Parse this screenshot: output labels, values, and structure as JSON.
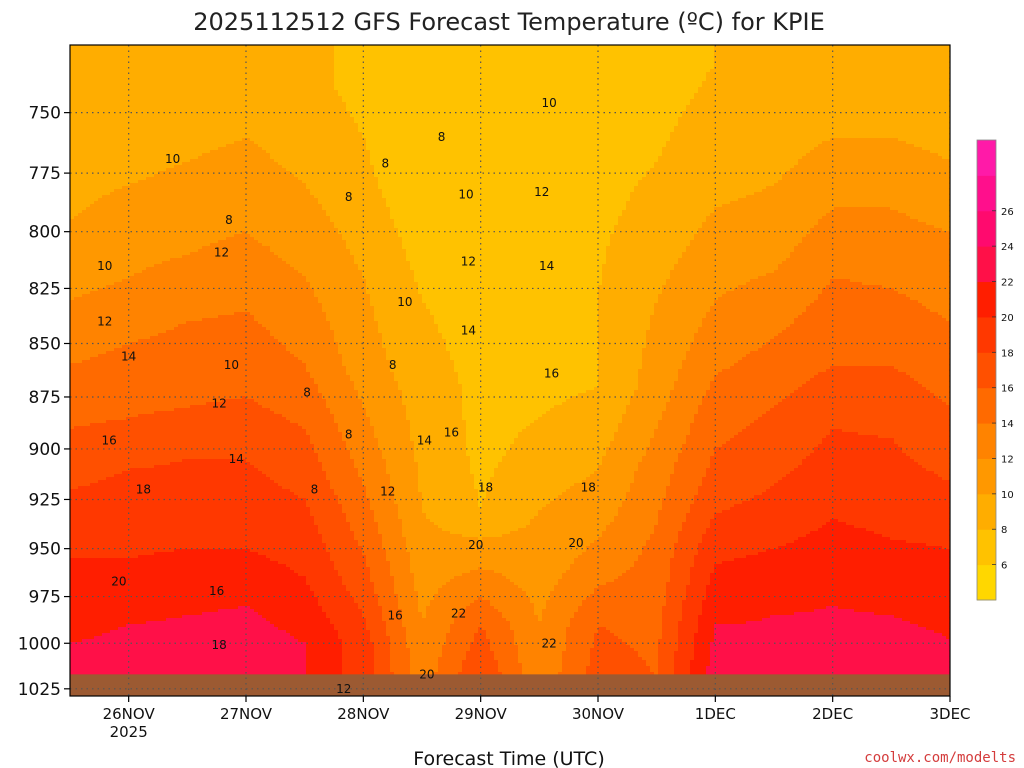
{
  "title": "2025112512 GFS Forecast Temperature (ºC) for KPIE",
  "xlabel": "Forecast Time (UTC)",
  "credit": "coolwx.com/modelts",
  "colors": {
    "bands": [
      "#ffd700",
      "#ffc200",
      "#ffad00",
      "#ff9800",
      "#ff8300",
      "#ff6a00",
      "#ff5000",
      "#ff3800",
      "#ff1e00",
      "#ff1048",
      "#ff0a6e",
      "#ff0f8c",
      "#ff1aa8"
    ],
    "ground": "#9c5a32",
    "grid": "#555555"
  },
  "chart_data": {
    "type": "heatmap",
    "title": "2025112512 GFS Forecast Temperature (ºC) for KPIE",
    "xlabel": "Forecast Time (UTC)",
    "ylabel": "",
    "x_ticks": [
      {
        "label": "26NOV",
        "sub": "2025"
      },
      {
        "label": "27NOV",
        "sub": ""
      },
      {
        "label": "28NOV",
        "sub": ""
      },
      {
        "label": "29NOV",
        "sub": ""
      },
      {
        "label": "30NOV",
        "sub": ""
      },
      {
        "label": "1DEC",
        "sub": ""
      },
      {
        "label": "2DEC",
        "sub": ""
      },
      {
        "label": "3DEC",
        "sub": ""
      }
    ],
    "x_tick_hours": [
      12,
      36,
      60,
      84,
      108,
      132,
      156,
      180
    ],
    "xlim_hours": [
      0,
      180
    ],
    "y_ticks": [
      750,
      775,
      800,
      825,
      850,
      875,
      900,
      925,
      950,
      975,
      1000,
      1025
    ],
    "ylim": [
      723,
      1029
    ],
    "y_log_scale": true,
    "grid": true,
    "colorbar_ticks": [
      6,
      8,
      10,
      12,
      14,
      16,
      18,
      20,
      22,
      24,
      26
    ],
    "colorbar_range": [
      4,
      30
    ],
    "contour_interval": 2,
    "ground_level_hpa": 1017,
    "column_hours": [
      0,
      12,
      24,
      36,
      48,
      60,
      72,
      84,
      96,
      108,
      120,
      132,
      144,
      156,
      168,
      180
    ],
    "column_profiles": [
      [
        [
          740,
          8
        ],
        [
          780,
          9.5
        ],
        [
          810,
          10.5
        ],
        [
          830,
          12
        ],
        [
          860,
          14
        ],
        [
          890,
          16
        ],
        [
          920,
          18
        ],
        [
          955,
          20
        ],
        [
          1000,
          22
        ],
        [
          1020,
          23
        ]
      ],
      [
        [
          740,
          8
        ],
        [
          770,
          9.5
        ],
        [
          790,
          10.5
        ],
        [
          820,
          12
        ],
        [
          850,
          14
        ],
        [
          885,
          16
        ],
        [
          910,
          18
        ],
        [
          955,
          20
        ],
        [
          990,
          22
        ],
        [
          1020,
          23
        ]
      ],
      [
        [
          740,
          8.5
        ],
        [
          760,
          9.5
        ],
        [
          780,
          10.5
        ],
        [
          810,
          12
        ],
        [
          840,
          14
        ],
        [
          880,
          16
        ],
        [
          905,
          18
        ],
        [
          950,
          20
        ],
        [
          985,
          22
        ],
        [
          1020,
          23.5
        ]
      ],
      [
        [
          730,
          9
        ],
        [
          760,
          10
        ],
        [
          770,
          10.5
        ],
        [
          800,
          12
        ],
        [
          835,
          14
        ],
        [
          875,
          16
        ],
        [
          905,
          18
        ],
        [
          950,
          20
        ],
        [
          980,
          22
        ],
        [
          1020,
          24
        ]
      ],
      [
        [
          740,
          8.5
        ],
        [
          770,
          9.5
        ],
        [
          790,
          10.5
        ],
        [
          820,
          12
        ],
        [
          860,
          14
        ],
        [
          890,
          16
        ],
        [
          925,
          18
        ],
        [
          965,
          20
        ],
        [
          1000,
          22
        ],
        [
          1020,
          22
        ]
      ],
      [
        [
          740,
          7.5
        ],
        [
          780,
          8.5
        ],
        [
          820,
          10
        ],
        [
          860,
          11
        ],
        [
          900,
          13
        ],
        [
          935,
          15
        ],
        [
          970,
          17
        ],
        [
          1000,
          19
        ],
        [
          1020,
          19
        ]
      ],
      [
        [
          730,
          6
        ],
        [
          780,
          6.5
        ],
        [
          830,
          8
        ],
        [
          870,
          9
        ],
        [
          900,
          9.5
        ],
        [
          930,
          10
        ],
        [
          960,
          11
        ],
        [
          990,
          12
        ],
        [
          1020,
          13
        ]
      ],
      [
        [
          730,
          6
        ],
        [
          780,
          6.5
        ],
        [
          830,
          7
        ],
        [
          870,
          7.5
        ],
        [
          900,
          7.5
        ],
        [
          930,
          8
        ],
        [
          960,
          12
        ],
        [
          990,
          16
        ],
        [
          1020,
          18
        ]
      ],
      [
        [
          730,
          6
        ],
        [
          780,
          7
        ],
        [
          830,
          7.5
        ],
        [
          870,
          7.5
        ],
        [
          900,
          8.5
        ],
        [
          930,
          10
        ],
        [
          960,
          11
        ],
        [
          990,
          12
        ],
        [
          1020,
          12.5
        ]
      ],
      [
        [
          730,
          6.5
        ],
        [
          780,
          7.5
        ],
        [
          830,
          8
        ],
        [
          870,
          8
        ],
        [
          900,
          9.5
        ],
        [
          930,
          11
        ],
        [
          960,
          13
        ],
        [
          990,
          16
        ],
        [
          1020,
          17
        ]
      ],
      [
        [
          730,
          7
        ],
        [
          790,
          8.5
        ],
        [
          830,
          10
        ],
        [
          870,
          11
        ],
        [
          910,
          13
        ],
        [
          950,
          14.5
        ],
        [
          990,
          15.5
        ],
        [
          1020,
          16
        ]
      ],
      [
        [
          730,
          8
        ],
        [
          780,
          9.5
        ],
        [
          810,
          11
        ],
        [
          850,
          13
        ],
        [
          880,
          15
        ],
        [
          920,
          17
        ],
        [
          950,
          19.5
        ],
        [
          990,
          22
        ],
        [
          1015,
          23
        ]
      ],
      [
        [
          730,
          8
        ],
        [
          770,
          9.5
        ],
        [
          810,
          11.5
        ],
        [
          840,
          13.5
        ],
        [
          870,
          15.5
        ],
        [
          910,
          17.5
        ],
        [
          950,
          20
        ],
        [
          985,
          22
        ],
        [
          1015,
          22.5
        ]
      ],
      [
        [
          730,
          9
        ],
        [
          760,
          10
        ],
        [
          790,
          12
        ],
        [
          820,
          14
        ],
        [
          860,
          16
        ],
        [
          890,
          18
        ],
        [
          935,
          20
        ],
        [
          980,
          22
        ],
        [
          1015,
          23
        ]
      ],
      [
        [
          730,
          9
        ],
        [
          760,
          10
        ],
        [
          790,
          12
        ],
        [
          825,
          14
        ],
        [
          860,
          16
        ],
        [
          895,
          18
        ],
        [
          945,
          20
        ],
        [
          985,
          22
        ],
        [
          1015,
          23
        ]
      ],
      [
        [
          730,
          8
        ],
        [
          770,
          10
        ],
        [
          800,
          12
        ],
        [
          830,
          13.5
        ],
        [
          860,
          15
        ],
        [
          900,
          17
        ],
        [
          940,
          19.5
        ],
        [
          980,
          21.5
        ],
        [
          1015,
          22.5
        ]
      ]
    ],
    "contour_labels": [
      {
        "text": "10",
        "h": 7.1,
        "p": 815
      },
      {
        "text": "12",
        "h": 7.1,
        "p": 840
      },
      {
        "text": "14",
        "h": 12,
        "p": 856
      },
      {
        "text": "16",
        "h": 8,
        "p": 896
      },
      {
        "text": "10",
        "h": 21,
        "p": 769
      },
      {
        "text": "12",
        "h": 31,
        "p": 809
      },
      {
        "text": "18",
        "h": 15,
        "p": 920
      },
      {
        "text": "20",
        "h": 10,
        "p": 967
      },
      {
        "text": "8",
        "h": 32.5,
        "p": 795
      },
      {
        "text": "10",
        "h": 33,
        "p": 860
      },
      {
        "text": "12",
        "h": 30.5,
        "p": 878
      },
      {
        "text": "14",
        "h": 34,
        "p": 905
      },
      {
        "text": "16",
        "h": 30,
        "p": 972
      },
      {
        "text": "18",
        "h": 30.5,
        "p": 1001
      },
      {
        "text": "8",
        "h": 48.5,
        "p": 873
      },
      {
        "text": "8",
        "h": 50,
        "p": 920
      },
      {
        "text": "8",
        "h": 57,
        "p": 893
      },
      {
        "text": "8",
        "h": 57,
        "p": 785
      },
      {
        "text": "8",
        "h": 64.5,
        "p": 771
      },
      {
        "text": "8",
        "h": 66,
        "p": 860
      },
      {
        "text": "12",
        "h": 56,
        "p": 1025
      },
      {
        "text": "10",
        "h": 68.5,
        "p": 831
      },
      {
        "text": "12",
        "h": 65,
        "p": 921
      },
      {
        "text": "14",
        "h": 72.5,
        "p": 896
      },
      {
        "text": "16",
        "h": 66.5,
        "p": 985
      },
      {
        "text": "16",
        "h": 78,
        "p": 892
      },
      {
        "text": "8",
        "h": 76,
        "p": 760
      },
      {
        "text": "10",
        "h": 81,
        "p": 784
      },
      {
        "text": "12",
        "h": 81.5,
        "p": 813
      },
      {
        "text": "14",
        "h": 81.5,
        "p": 844
      },
      {
        "text": "18",
        "h": 85,
        "p": 919
      },
      {
        "text": "20",
        "h": 83,
        "p": 948
      },
      {
        "text": "22",
        "h": 79.5,
        "p": 984
      },
      {
        "text": "20",
        "h": 73,
        "p": 1017
      },
      {
        "text": "10",
        "h": 98,
        "p": 746
      },
      {
        "text": "12",
        "h": 96.5,
        "p": 783
      },
      {
        "text": "14",
        "h": 97.5,
        "p": 815
      },
      {
        "text": "16",
        "h": 98.5,
        "p": 864
      },
      {
        "text": "18",
        "h": 106,
        "p": 919
      },
      {
        "text": "20",
        "h": 103.5,
        "p": 947
      },
      {
        "text": "22",
        "h": 98,
        "p": 1000
      }
    ]
  }
}
